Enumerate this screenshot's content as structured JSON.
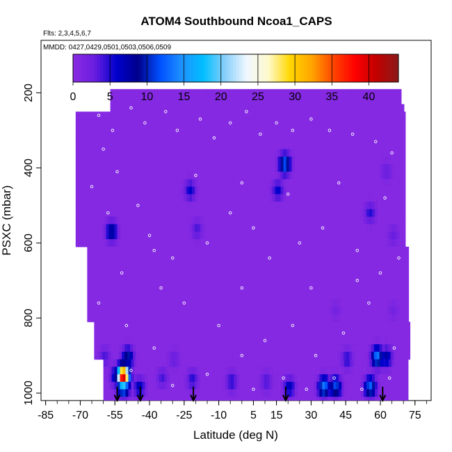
{
  "chart_data": {
    "type": "heatmap",
    "title": "ATOM4 Southbound Ncoa1_CAPS",
    "flights_label": "Flts: 2,3,4,5,6,7",
    "dates_label": "MMDD: 0427,0429,0501,0503,0506,0509",
    "xlabel": "Latitude (deg N)",
    "ylabel": "PSXC (mbar)",
    "xlim": [
      -87,
      82
    ],
    "ylim": [
      1020,
      60
    ],
    "x_ticks": [
      -85,
      -70,
      -55,
      -40,
      -25,
      -10,
      5,
      15,
      30,
      45,
      60,
      75
    ],
    "x_tick_labels": [
      "-85",
      "-70",
      "-55",
      "-40",
      "-25",
      "-10",
      "5",
      "15",
      "30",
      "45",
      "60",
      "75"
    ],
    "y_ticks": [
      200,
      400,
      600,
      800,
      1000
    ],
    "y_tick_labels": [
      "200",
      "400",
      "600",
      "800",
      "1000"
    ],
    "colorbar": {
      "min": 0,
      "max": 44,
      "ticks": [
        0,
        5,
        10,
        15,
        20,
        25,
        30,
        35,
        40
      ],
      "tick_labels": [
        "0",
        "5",
        "10",
        "15",
        "20",
        "25",
        "30",
        "35",
        "40"
      ],
      "colors": [
        "#8a2be2",
        "#6a1ee0",
        "#0000cd",
        "#00008b",
        "#0050ff",
        "#1e90ff",
        "#00bfff",
        "#87cefa",
        "#f0f8ff",
        "#fffacd",
        "#ffd700",
        "#ffa500",
        "#ff4500",
        "#ff0000",
        "#c00000",
        "#8b1a1a"
      ]
    },
    "background_value": 0.5,
    "hotspots": [
      {
        "lat": -52,
        "p": 945,
        "value": 42
      },
      {
        "lat": -52,
        "p": 975,
        "value": 15
      },
      {
        "lat": -55,
        "p": 945,
        "value": 8
      },
      {
        "lat": -50,
        "p": 895,
        "value": 10
      },
      {
        "lat": -60,
        "p": 895,
        "value": 4
      },
      {
        "lat": -45,
        "p": 975,
        "value": 7
      },
      {
        "lat": -35,
        "p": 950,
        "value": 4
      },
      {
        "lat": -22,
        "p": 955,
        "value": 5
      },
      {
        "lat": -5,
        "p": 960,
        "value": 5
      },
      {
        "lat": 10,
        "p": 960,
        "value": 4
      },
      {
        "lat": 20,
        "p": 975,
        "value": 7
      },
      {
        "lat": 35,
        "p": 975,
        "value": 14
      },
      {
        "lat": 40,
        "p": 975,
        "value": 12
      },
      {
        "lat": 55,
        "p": 975,
        "value": 13
      },
      {
        "lat": 58,
        "p": 895,
        "value": 14
      },
      {
        "lat": 62,
        "p": 895,
        "value": 8
      },
      {
        "lat": 45,
        "p": 900,
        "value": 5
      },
      {
        "lat": -30,
        "p": 900,
        "value": 3
      },
      {
        "lat": 18,
        "p": 380,
        "value": 13
      },
      {
        "lat": 15,
        "p": 450,
        "value": 6
      },
      {
        "lat": -23,
        "p": 450,
        "value": 6
      },
      {
        "lat": -57,
        "p": 560,
        "value": 9
      },
      {
        "lat": -20,
        "p": 555,
        "value": 4
      },
      {
        "lat": 55,
        "p": 510,
        "value": 5
      },
      {
        "lat": 62,
        "p": 400,
        "value": 3
      },
      {
        "lat": 65,
        "p": 570,
        "value": 3
      },
      {
        "lat": 40,
        "p": 770,
        "value": 2
      },
      {
        "lat": 65,
        "p": 770,
        "value": 2
      }
    ],
    "arrow_latitudes": [
      -54,
      -44,
      -21,
      19,
      61
    ],
    "sample_points": [
      {
        "lat": -68,
        "p": 230
      },
      {
        "lat": -62,
        "p": 260
      },
      {
        "lat": -56,
        "p": 300
      },
      {
        "lat": -60,
        "p": 350
      },
      {
        "lat": -54,
        "p": 410
      },
      {
        "lat": -48,
        "p": 240
      },
      {
        "lat": -42,
        "p": 280
      },
      {
        "lat": -45,
        "p": 500
      },
      {
        "lat": -38,
        "p": 620
      },
      {
        "lat": -52,
        "p": 680
      },
      {
        "lat": -33,
        "p": 250
      },
      {
        "lat": -28,
        "p": 300
      },
      {
        "lat": -18,
        "p": 270
      },
      {
        "lat": -12,
        "p": 320
      },
      {
        "lat": -5,
        "p": 280
      },
      {
        "lat": 2,
        "p": 250
      },
      {
        "lat": 8,
        "p": 310
      },
      {
        "lat": 15,
        "p": 280
      },
      {
        "lat": 22,
        "p": 300
      },
      {
        "lat": 30,
        "p": 270
      },
      {
        "lat": 38,
        "p": 300
      },
      {
        "lat": 48,
        "p": 310
      },
      {
        "lat": 58,
        "p": 330
      },
      {
        "lat": 65,
        "p": 360
      },
      {
        "lat": -65,
        "p": 450
      },
      {
        "lat": -58,
        "p": 520
      },
      {
        "lat": -40,
        "p": 580
      },
      {
        "lat": -30,
        "p": 640
      },
      {
        "lat": -15,
        "p": 600
      },
      {
        "lat": -5,
        "p": 520
      },
      {
        "lat": 5,
        "p": 560
      },
      {
        "lat": 12,
        "p": 640
      },
      {
        "lat": 25,
        "p": 600
      },
      {
        "lat": 35,
        "p": 560
      },
      {
        "lat": 50,
        "p": 620
      },
      {
        "lat": 60,
        "p": 680
      },
      {
        "lat": 68,
        "p": 640
      },
      {
        "lat": -62,
        "p": 760
      },
      {
        "lat": -50,
        "p": 820
      },
      {
        "lat": -38,
        "p": 880
      },
      {
        "lat": -25,
        "p": 760
      },
      {
        "lat": -10,
        "p": 820
      },
      {
        "lat": 0,
        "p": 900
      },
      {
        "lat": 10,
        "p": 860
      },
      {
        "lat": 22,
        "p": 820
      },
      {
        "lat": 32,
        "p": 900
      },
      {
        "lat": 44,
        "p": 840
      },
      {
        "lat": 55,
        "p": 760
      },
      {
        "lat": 66,
        "p": 880
      },
      {
        "lat": -66,
        "p": 960
      },
      {
        "lat": -48,
        "p": 940
      },
      {
        "lat": -30,
        "p": 980
      },
      {
        "lat": -15,
        "p": 950
      },
      {
        "lat": 5,
        "p": 990
      },
      {
        "lat": 18,
        "p": 960
      },
      {
        "lat": 28,
        "p": 990
      },
      {
        "lat": 40,
        "p": 960
      },
      {
        "lat": 52,
        "p": 990
      },
      {
        "lat": 64,
        "p": 960
      },
      {
        "lat": -20,
        "p": 420
      },
      {
        "lat": 0,
        "p": 440
      },
      {
        "lat": 20,
        "p": 470
      },
      {
        "lat": 42,
        "p": 440
      },
      {
        "lat": 62,
        "p": 480
      },
      {
        "lat": -35,
        "p": 720
      },
      {
        "lat": 0,
        "p": 720
      },
      {
        "lat": 30,
        "p": 720
      },
      {
        "lat": 50,
        "p": 700
      }
    ]
  }
}
